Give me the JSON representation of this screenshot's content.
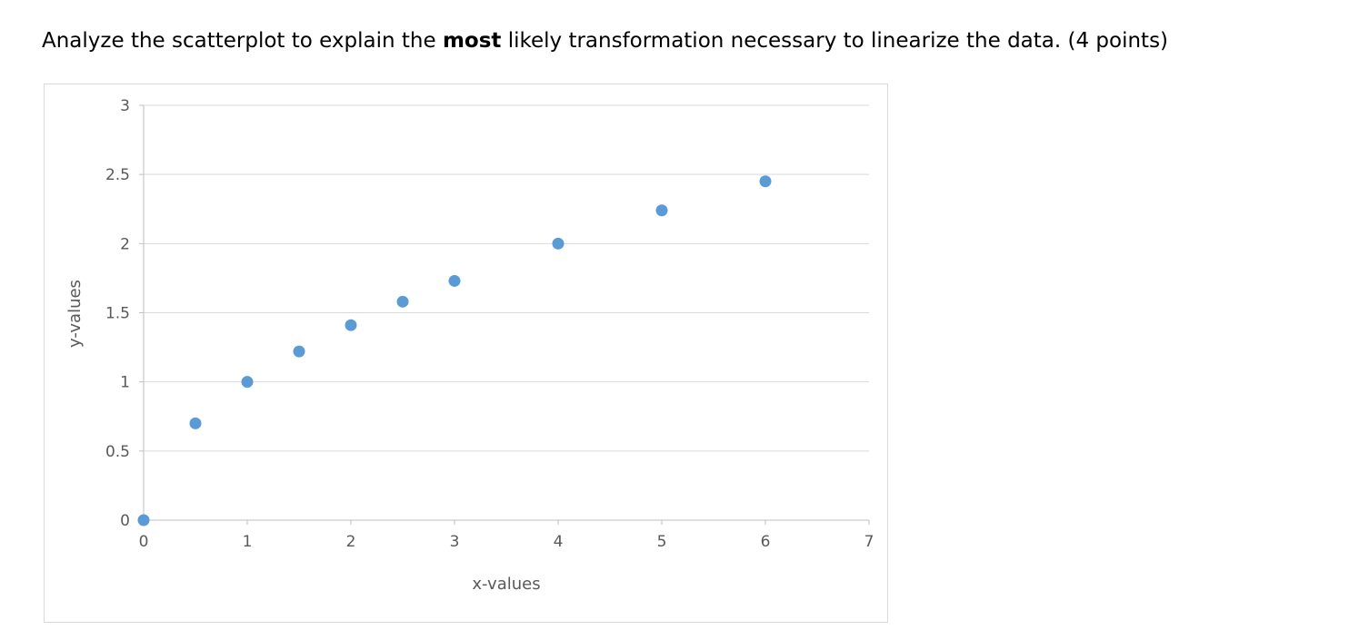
{
  "question": {
    "prefix": "Analyze the scatterplot to explain the ",
    "bold": "most",
    "suffix": " likely transformation necessary to linearize the data. (4 points)"
  },
  "chart_data": {
    "type": "scatter",
    "title": "",
    "xlabel": "x-values",
    "ylabel": "y-values",
    "xlim": [
      0,
      7
    ],
    "ylim": [
      0,
      3
    ],
    "x_ticks": [
      0,
      1,
      2,
      3,
      4,
      5,
      6,
      7
    ],
    "y_ticks": [
      0,
      0.5,
      1,
      1.5,
      2,
      2.5,
      3
    ],
    "grid": "horizontal",
    "legend": "none",
    "points": [
      {
        "x": 0,
        "y": 0
      },
      {
        "x": 0.5,
        "y": 0.7
      },
      {
        "x": 1,
        "y": 1.0
      },
      {
        "x": 1.5,
        "y": 1.22
      },
      {
        "x": 2,
        "y": 1.41
      },
      {
        "x": 2.5,
        "y": 1.58
      },
      {
        "x": 3,
        "y": 1.73
      },
      {
        "x": 4,
        "y": 2.0
      },
      {
        "x": 5,
        "y": 2.24
      },
      {
        "x": 6,
        "y": 2.45
      }
    ],
    "point_color": "#5b9bd5",
    "gridline_color": "#d9d9d9",
    "axis_color": "#bfbfbf",
    "label_color": "#595959"
  }
}
